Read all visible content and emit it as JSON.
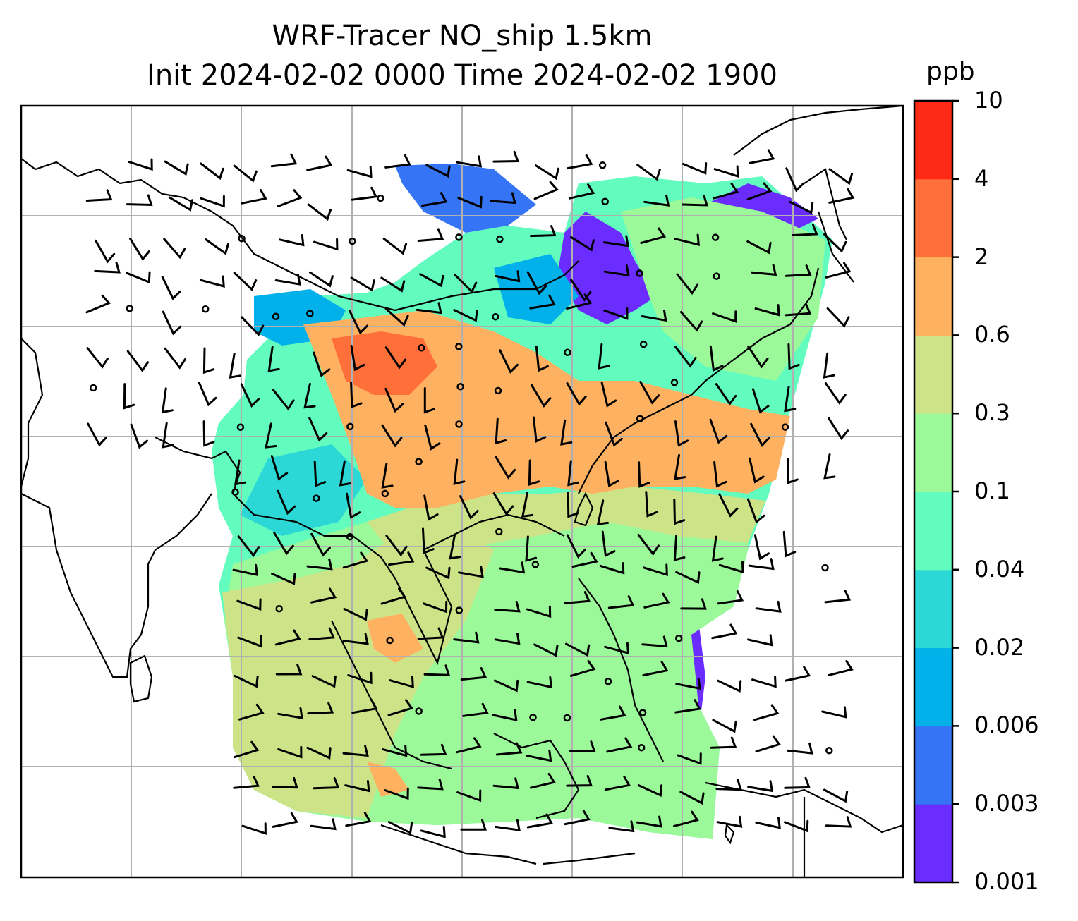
{
  "title": {
    "line1": "WRF-Tracer NO_ship 1.5km",
    "line2": "Init 2024-02-02 0000 Time 2024-02-02 1900"
  },
  "colorbar": {
    "unit": "ppb",
    "ticks": [
      "0.001",
      "0.003",
      "0.006",
      "0.02",
      "0.04",
      "0.1",
      "0.3",
      "0.6",
      "2",
      "4",
      "10"
    ],
    "colors": [
      "#6a2cff",
      "#3474f5",
      "#02b1ea",
      "#2cd8d6",
      "#63fcbf",
      "#9bf99a",
      "#cde387",
      "#feb261",
      "#fe6f3a",
      "#fe2a16"
    ]
  },
  "map": {
    "variable": "NO_ship",
    "overlay": "wind-barbs",
    "gridlines": true,
    "coastlines": true
  },
  "colors": {
    "gridline": "#b0b0b0",
    "coast": "#000000",
    "frame": "#000000"
  }
}
